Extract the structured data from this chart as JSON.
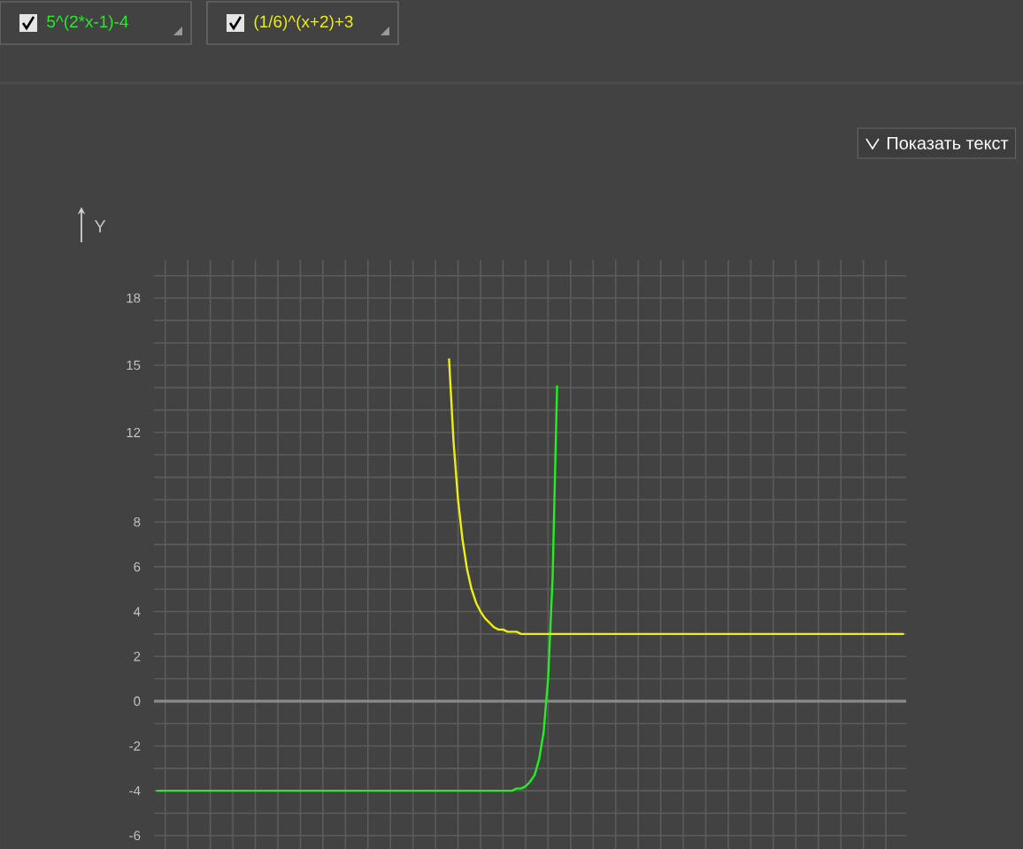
{
  "chart_data": {
    "type": "line",
    "ylabel": "Y",
    "annotations": [
      "Показать текст"
    ],
    "categories": [
      null,
      null,
      null,
      null,
      null,
      null,
      null,
      null,
      null,
      null,
      null,
      null,
      null,
      null,
      null,
      null,
      null,
      null,
      null,
      null,
      null,
      null,
      null,
      null,
      null,
      null,
      null,
      null,
      null,
      null,
      null,
      null,
      null,
      null,
      null,
      null,
      null,
      null,
      null,
      null,
      null,
      null,
      null,
      null,
      null,
      null,
      null,
      null,
      null,
      null,
      null,
      null,
      null,
      null,
      null,
      null,
      null,
      null,
      null,
      null,
      null,
      null,
      null,
      null,
      null,
      null,
      null,
      null,
      null,
      null,
      null,
      null,
      null,
      null,
      null,
      null,
      null,
      null,
      null,
      null,
      null,
      null,
      null,
      null,
      null,
      null,
      null,
      null,
      null,
      null,
      null,
      null,
      null,
      null,
      null,
      null,
      null,
      null,
      null,
      null,
      null,
      null,
      null,
      null,
      null,
      null,
      null,
      null,
      null,
      null,
      null,
      null,
      null,
      null,
      null,
      null,
      null,
      null,
      null,
      null,
      null,
      null,
      null,
      null,
      null,
      null,
      null,
      null,
      null,
      null,
      null,
      null,
      null,
      null,
      null,
      null,
      null,
      null,
      null,
      null,
      null,
      null,
      null,
      null,
      null,
      null,
      null,
      null,
      null,
      null,
      null,
      null,
      null,
      null,
      null,
      null,
      null,
      null,
      null,
      null,
      null,
      null,
      null,
      null,
      null,
      null,
      null
    ],
    "ylim": [
      -6.6,
      19.7
    ],
    "yticks": [
      -6,
      {
        "value": -5,
        "label": null
      },
      -4,
      {
        "value": -3,
        "label": null
      },
      -2,
      {
        "value": -1,
        "label": null
      },
      0,
      {
        "value": 1,
        "label": null
      },
      2,
      {
        "value": 3,
        "label": null
      },
      4,
      {
        "value": 5,
        "label": null
      },
      6,
      {
        "value": 7,
        "label": null
      },
      8,
      {
        "value": 9,
        "label": null
      },
      {
        "value": 10,
        "label": null
      },
      {
        "value": 11,
        "label": null
      },
      12,
      {
        "value": 13,
        "label": null
      },
      {
        "value": 14,
        "label": null
      },
      15,
      {
        "value": 16,
        "label": null
      },
      {
        "value": 17,
        "label": null
      },
      18,
      {
        "value": 19,
        "label": null
      }
    ],
    "tick_labels": "y",
    "grid": true,
    "legend": "top left",
    "marker": "none",
    "line_style": "solid",
    "series": [
      {
        "name": "5^(2*x-1)-4",
        "color": "#22ee22",
        "values": [
          -4,
          -4,
          -4,
          -4,
          -4,
          -4,
          -4,
          -4,
          -4,
          -4,
          -4,
          -4,
          -4,
          -4,
          -4,
          -4,
          -4,
          -4,
          -4,
          -4,
          -4,
          -4,
          -4,
          -4,
          -4,
          -4,
          -4,
          -4,
          -4,
          -4,
          -4,
          -4,
          -4,
          -4,
          -4,
          -4,
          -4,
          -4,
          -4,
          -4,
          -4,
          -4,
          -4,
          -4,
          -4,
          -4,
          -4,
          -4,
          -4,
          -4,
          -4,
          -4,
          -4,
          -4,
          -4,
          -4,
          -4,
          -4,
          -4,
          -4,
          -4,
          -4,
          -4,
          -4,
          -4,
          -4,
          -4,
          -4,
          -4,
          -4,
          -4,
          -4,
          -4,
          -4,
          -4,
          -4,
          -4,
          -4,
          -4,
          -4,
          -3.9,
          -3.9,
          -3.8,
          -3.6,
          -3.3,
          -2.6,
          -1.4,
          1,
          5.5,
          14.1,
          null,
          null,
          null,
          null,
          null,
          null,
          null,
          null,
          null,
          null,
          null,
          null,
          null,
          null,
          null,
          null,
          null,
          null,
          null,
          null,
          null,
          null,
          null,
          null,
          null,
          null,
          null,
          null,
          null,
          null,
          null,
          null,
          null,
          null,
          null,
          null,
          null,
          null,
          null,
          null,
          null,
          null,
          null,
          null,
          null,
          null,
          null,
          null,
          null,
          null,
          null,
          null,
          null,
          null,
          null,
          null,
          null,
          null,
          null,
          null,
          null,
          null,
          null,
          null,
          null,
          null,
          null,
          null,
          null,
          null,
          null,
          null,
          null,
          null,
          null,
          null,
          null
        ]
      },
      {
        "name": "(1/6)^(x+2)+3",
        "color": "#eeee11",
        "values": [
          null,
          null,
          null,
          null,
          null,
          null,
          null,
          null,
          null,
          null,
          null,
          null,
          null,
          null,
          null,
          null,
          null,
          null,
          null,
          null,
          null,
          null,
          null,
          null,
          null,
          null,
          null,
          null,
          null,
          null,
          null,
          null,
          null,
          null,
          null,
          null,
          null,
          null,
          null,
          null,
          null,
          null,
          null,
          null,
          null,
          null,
          null,
          null,
          null,
          null,
          null,
          null,
          null,
          null,
          null,
          null,
          null,
          null,
          null,
          null,
          null,
          null,
          null,
          null,
          null,
          15.3,
          11.6,
          9,
          7.2,
          5.9,
          5.0,
          4.4,
          4,
          3.7,
          3.5,
          3.3,
          3.2,
          3.2,
          3.1,
          3.1,
          3.1,
          3,
          3,
          3,
          3,
          3,
          3,
          3,
          3,
          3,
          3,
          3,
          3,
          3,
          3,
          3,
          3,
          3,
          3,
          3,
          3,
          3,
          3,
          3,
          3,
          3,
          3,
          3,
          3,
          3,
          3,
          3,
          3,
          3,
          3,
          3,
          3,
          3,
          3,
          3,
          3,
          3,
          3,
          3,
          3,
          3,
          3,
          3,
          3,
          3,
          3,
          3,
          3,
          3,
          3,
          3,
          3,
          3,
          3,
          3,
          3,
          3,
          3,
          3,
          3,
          3,
          3,
          3,
          3,
          3,
          3,
          3,
          3,
          3,
          3,
          3,
          3,
          3,
          3,
          3,
          3,
          3,
          3,
          3,
          3,
          3,
          3
        ]
      }
    ]
  }
}
